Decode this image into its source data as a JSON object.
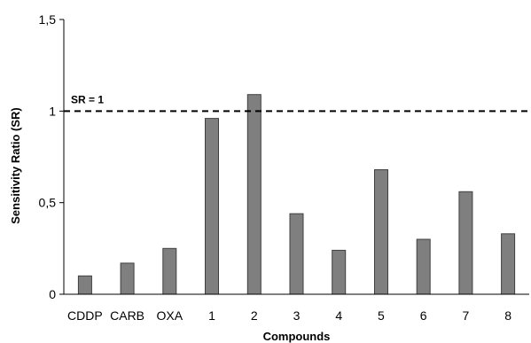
{
  "chart_data": {
    "type": "bar",
    "categories": [
      "CDDP",
      "CARB",
      "OXA",
      "1",
      "2",
      "3",
      "4",
      "5",
      "6",
      "7",
      "8"
    ],
    "values": [
      0.1,
      0.17,
      0.25,
      0.96,
      1.09,
      0.44,
      0.24,
      0.68,
      0.3,
      0.56,
      0.33
    ],
    "xlabel": "Compounds",
    "ylabel": "Sensitivity Ratio (SR)",
    "ylim": [
      0,
      1.5
    ],
    "yticks": [
      0,
      0.5,
      1,
      1.5
    ],
    "ytick_labels": [
      "0",
      "0,5",
      "1",
      "1,5"
    ],
    "reference_line": {
      "value": 1,
      "label": "SR = 1",
      "style": "dashed"
    },
    "grid": false,
    "colors": {
      "bar_fill": "#7f7f7f",
      "bar_stroke": "#3f3f3f",
      "axis": "#000000",
      "reference": "#000000"
    }
  }
}
